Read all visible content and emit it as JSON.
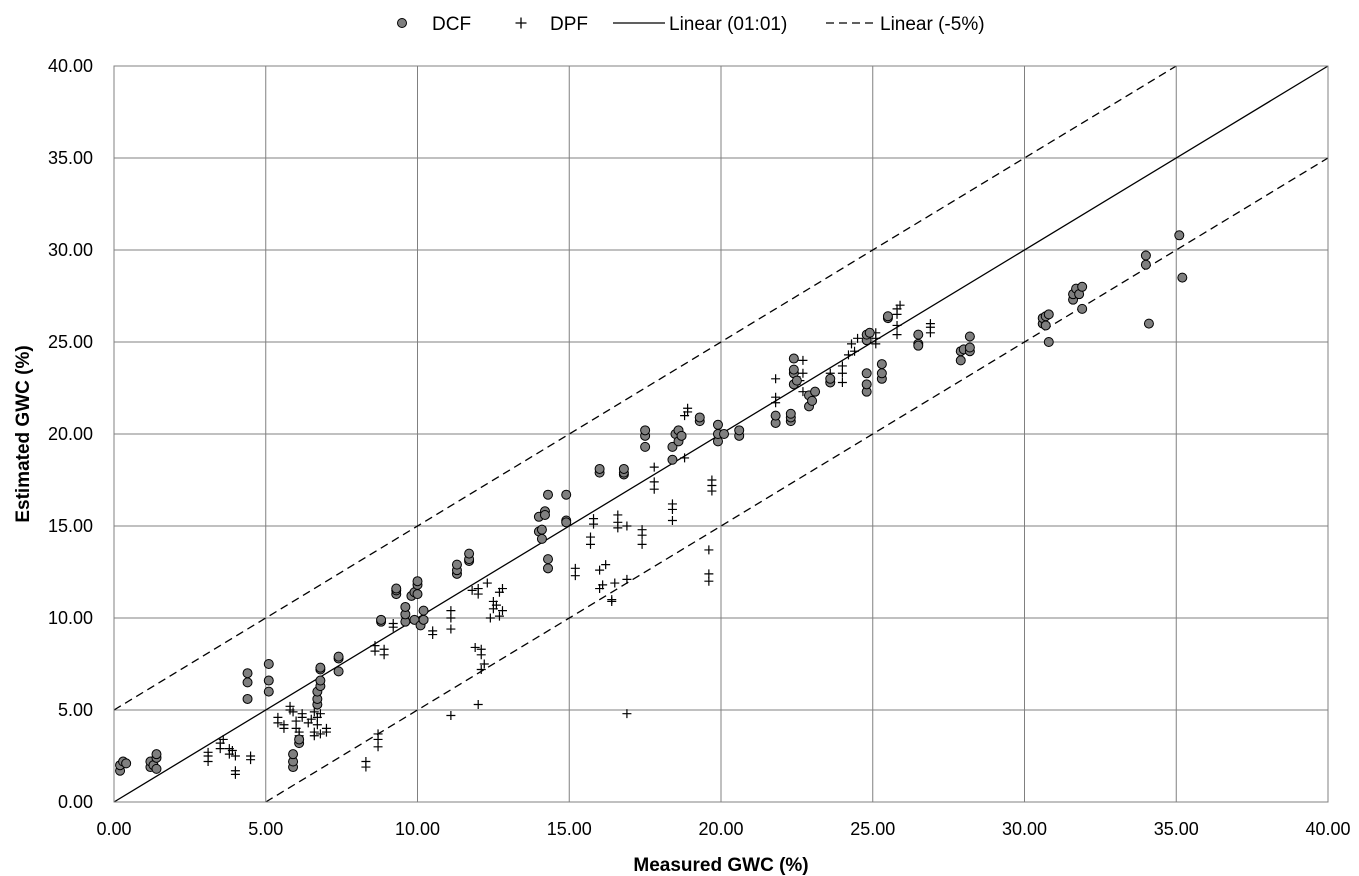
{
  "chart_data": {
    "type": "scatter",
    "xlabel": "Measured GWC (%)",
    "ylabel": "Estimated GWC (%)",
    "xlim": [
      0,
      40
    ],
    "ylim": [
      0,
      40
    ],
    "x_ticks": [
      "0.00",
      "5.00",
      "10.00",
      "15.00",
      "20.00",
      "25.00",
      "30.00",
      "35.00",
      "40.00"
    ],
    "y_ticks": [
      "0.00",
      "5.00",
      "10.00",
      "15.00",
      "20.00",
      "25.00",
      "30.00",
      "35.00",
      "40.00"
    ],
    "grid": true,
    "legend_position": "top",
    "legend": {
      "dcf": "DCF",
      "dpf": "DPF",
      "linear_1": "Linear (01:01)",
      "linear_5": "Linear (-5%)"
    },
    "series": [
      {
        "name": "DCF",
        "marker": "circle",
        "color": "#7f7f7f",
        "points": [
          [
            0.2,
            1.7
          ],
          [
            0.2,
            2.0
          ],
          [
            0.3,
            2.2
          ],
          [
            0.4,
            2.1
          ],
          [
            1.2,
            1.9
          ],
          [
            1.2,
            2.2
          ],
          [
            1.3,
            2.0
          ],
          [
            1.4,
            1.8
          ],
          [
            1.4,
            2.4
          ],
          [
            1.4,
            2.6
          ],
          [
            4.4,
            5.6
          ],
          [
            4.4,
            6.5
          ],
          [
            4.4,
            7.0
          ],
          [
            5.1,
            6.0
          ],
          [
            5.1,
            6.6
          ],
          [
            5.1,
            7.5
          ],
          [
            5.9,
            1.9
          ],
          [
            5.9,
            2.2
          ],
          [
            5.9,
            2.6
          ],
          [
            6.1,
            3.2
          ],
          [
            6.1,
            3.4
          ],
          [
            6.7,
            5.3
          ],
          [
            6.7,
            5.6
          ],
          [
            6.7,
            6.0
          ],
          [
            6.8,
            6.3
          ],
          [
            6.8,
            6.6
          ],
          [
            6.8,
            7.2
          ],
          [
            6.8,
            7.3
          ],
          [
            7.4,
            7.1
          ],
          [
            7.4,
            7.8
          ],
          [
            7.4,
            7.9
          ],
          [
            8.8,
            9.8
          ],
          [
            8.8,
            9.9
          ],
          [
            9.3,
            11.3
          ],
          [
            9.3,
            11.5
          ],
          [
            9.3,
            11.6
          ],
          [
            9.6,
            9.8
          ],
          [
            9.6,
            10.2
          ],
          [
            9.6,
            10.6
          ],
          [
            9.8,
            11.2
          ],
          [
            9.9,
            11.4
          ],
          [
            9.9,
            9.9
          ],
          [
            10.0,
            11.3
          ],
          [
            10.0,
            11.8
          ],
          [
            10.0,
            12.0
          ],
          [
            10.1,
            9.6
          ],
          [
            10.2,
            9.9
          ],
          [
            10.2,
            10.4
          ],
          [
            11.3,
            12.4
          ],
          [
            11.3,
            12.6
          ],
          [
            11.3,
            12.9
          ],
          [
            11.7,
            13.1
          ],
          [
            11.7,
            13.2
          ],
          [
            11.7,
            13.5
          ],
          [
            14.0,
            15.5
          ],
          [
            14.0,
            14.7
          ],
          [
            14.1,
            14.3
          ],
          [
            14.1,
            14.8
          ],
          [
            14.2,
            15.8
          ],
          [
            14.2,
            15.6
          ],
          [
            14.3,
            12.7
          ],
          [
            14.3,
            13.2
          ],
          [
            14.3,
            16.7
          ],
          [
            14.9,
            15.3
          ],
          [
            14.9,
            15.2
          ],
          [
            14.9,
            16.7
          ],
          [
            16.0,
            17.9
          ],
          [
            16.0,
            18.1
          ],
          [
            16.8,
            17.8
          ],
          [
            16.8,
            17.9
          ],
          [
            16.8,
            18.1
          ],
          [
            17.5,
            19.3
          ],
          [
            17.5,
            19.9
          ],
          [
            17.5,
            20.2
          ],
          [
            18.4,
            18.6
          ],
          [
            18.4,
            19.3
          ],
          [
            18.5,
            20.0
          ],
          [
            18.6,
            19.6
          ],
          [
            18.6,
            20.2
          ],
          [
            18.7,
            19.9
          ],
          [
            19.3,
            20.7
          ],
          [
            19.3,
            20.9
          ],
          [
            19.9,
            19.6
          ],
          [
            19.9,
            20.0
          ],
          [
            19.9,
            20.5
          ],
          [
            20.1,
            20.0
          ],
          [
            20.6,
            19.9
          ],
          [
            20.6,
            20.2
          ],
          [
            21.8,
            20.6
          ],
          [
            21.8,
            21.0
          ],
          [
            22.3,
            20.7
          ],
          [
            22.3,
            20.9
          ],
          [
            22.3,
            21.1
          ],
          [
            22.4,
            22.7
          ],
          [
            22.4,
            23.3
          ],
          [
            22.4,
            23.5
          ],
          [
            22.4,
            24.1
          ],
          [
            22.5,
            22.9
          ],
          [
            22.9,
            21.5
          ],
          [
            22.9,
            22.1
          ],
          [
            23.0,
            21.8
          ],
          [
            23.1,
            22.3
          ],
          [
            23.6,
            22.8
          ],
          [
            23.6,
            23.0
          ],
          [
            24.8,
            22.3
          ],
          [
            24.8,
            22.7
          ],
          [
            24.8,
            23.3
          ],
          [
            24.8,
            25.1
          ],
          [
            24.8,
            25.4
          ],
          [
            24.9,
            25.5
          ],
          [
            25.3,
            23.0
          ],
          [
            25.3,
            23.3
          ],
          [
            25.3,
            23.8
          ],
          [
            25.5,
            26.3
          ],
          [
            25.5,
            26.4
          ],
          [
            26.5,
            24.9
          ],
          [
            26.5,
            25.4
          ],
          [
            26.5,
            24.8
          ],
          [
            27.9,
            24.0
          ],
          [
            27.9,
            24.5
          ],
          [
            28.0,
            24.6
          ],
          [
            28.2,
            24.5
          ],
          [
            28.2,
            24.7
          ],
          [
            28.2,
            25.3
          ],
          [
            30.6,
            26.0
          ],
          [
            30.6,
            26.3
          ],
          [
            30.7,
            26.4
          ],
          [
            30.7,
            25.9
          ],
          [
            30.8,
            26.5
          ],
          [
            30.8,
            25.0
          ],
          [
            31.6,
            27.3
          ],
          [
            31.6,
            27.6
          ],
          [
            31.7,
            27.9
          ],
          [
            31.8,
            27.6
          ],
          [
            31.9,
            28.0
          ],
          [
            31.9,
            26.8
          ],
          [
            34.0,
            29.2
          ],
          [
            34.0,
            29.7
          ],
          [
            34.1,
            26.0
          ],
          [
            35.1,
            30.8
          ],
          [
            35.2,
            28.5
          ]
        ]
      },
      {
        "name": "DPF",
        "marker": "plus",
        "color": "#000000",
        "points": [
          [
            3.1,
            2.2
          ],
          [
            3.1,
            2.5
          ],
          [
            3.1,
            2.7
          ],
          [
            3.5,
            2.9
          ],
          [
            3.5,
            3.2
          ],
          [
            3.6,
            3.4
          ],
          [
            3.8,
            2.6
          ],
          [
            3.8,
            2.9
          ],
          [
            3.9,
            2.8
          ],
          [
            4.0,
            2.5
          ],
          [
            4.0,
            1.5
          ],
          [
            4.0,
            1.7
          ],
          [
            4.5,
            2.3
          ],
          [
            4.5,
            2.5
          ],
          [
            5.4,
            4.3
          ],
          [
            5.4,
            4.6
          ],
          [
            5.6,
            4.0
          ],
          [
            5.6,
            4.2
          ],
          [
            5.8,
            5.2
          ],
          [
            5.8,
            5.0
          ],
          [
            5.9,
            4.9
          ],
          [
            6.0,
            4.4
          ],
          [
            6.0,
            4.0
          ],
          [
            6.1,
            3.6
          ],
          [
            6.1,
            3.8
          ],
          [
            6.2,
            4.6
          ],
          [
            6.2,
            4.8
          ],
          [
            6.4,
            4.3
          ],
          [
            6.5,
            4.5
          ],
          [
            6.6,
            3.6
          ],
          [
            6.6,
            3.8
          ],
          [
            6.6,
            4.9
          ],
          [
            6.7,
            4.6
          ],
          [
            6.7,
            4.2
          ],
          [
            6.8,
            3.7
          ],
          [
            6.8,
            4.8
          ],
          [
            7.0,
            3.8
          ],
          [
            7.0,
            4.0
          ],
          [
            8.3,
            1.9
          ],
          [
            8.3,
            2.2
          ],
          [
            8.6,
            8.2
          ],
          [
            8.6,
            8.5
          ],
          [
            8.7,
            3.0
          ],
          [
            8.7,
            3.4
          ],
          [
            8.7,
            3.7
          ],
          [
            8.9,
            8.0
          ],
          [
            8.9,
            8.3
          ],
          [
            9.2,
            9.5
          ],
          [
            9.2,
            9.7
          ],
          [
            10.5,
            9.1
          ],
          [
            10.5,
            9.3
          ],
          [
            11.1,
            4.7
          ],
          [
            11.1,
            9.4
          ],
          [
            11.1,
            10.0
          ],
          [
            11.1,
            10.4
          ],
          [
            11.8,
            11.5
          ],
          [
            11.9,
            8.4
          ],
          [
            12.0,
            11.3
          ],
          [
            12.0,
            11.6
          ],
          [
            12.0,
            5.3
          ],
          [
            12.1,
            8.0
          ],
          [
            12.1,
            8.3
          ],
          [
            12.1,
            7.2
          ],
          [
            12.2,
            7.5
          ],
          [
            12.3,
            11.9
          ],
          [
            12.4,
            10.0
          ],
          [
            12.5,
            10.5
          ],
          [
            12.5,
            10.9
          ],
          [
            12.6,
            10.7
          ],
          [
            12.7,
            10.1
          ],
          [
            12.7,
            11.4
          ],
          [
            12.8,
            10.4
          ],
          [
            12.8,
            11.6
          ],
          [
            15.2,
            12.3
          ],
          [
            15.2,
            12.7
          ],
          [
            15.7,
            14.0
          ],
          [
            15.7,
            14.4
          ],
          [
            15.8,
            15.1
          ],
          [
            15.8,
            15.4
          ],
          [
            16.0,
            11.6
          ],
          [
            16.0,
            12.6
          ],
          [
            16.1,
            11.8
          ],
          [
            16.2,
            12.9
          ],
          [
            16.4,
            11.0
          ],
          [
            16.4,
            10.9
          ],
          [
            16.5,
            11.9
          ],
          [
            16.6,
            14.9
          ],
          [
            16.6,
            15.2
          ],
          [
            16.6,
            15.6
          ],
          [
            16.9,
            4.8
          ],
          [
            16.9,
            12.1
          ],
          [
            16.9,
            15.0
          ],
          [
            17.4,
            14.0
          ],
          [
            17.4,
            14.5
          ],
          [
            17.4,
            14.8
          ],
          [
            17.8,
            17.0
          ],
          [
            17.8,
            17.4
          ],
          [
            17.8,
            18.2
          ],
          [
            18.4,
            15.3
          ],
          [
            18.4,
            15.9
          ],
          [
            18.4,
            16.2
          ],
          [
            18.8,
            18.7
          ],
          [
            18.8,
            21.0
          ],
          [
            18.9,
            21.2
          ],
          [
            18.9,
            21.4
          ],
          [
            19.6,
            12.0
          ],
          [
            19.6,
            12.4
          ],
          [
            19.6,
            13.7
          ],
          [
            19.7,
            16.9
          ],
          [
            19.7,
            17.2
          ],
          [
            19.7,
            17.5
          ],
          [
            21.8,
            21.7
          ],
          [
            21.8,
            22.0
          ],
          [
            21.8,
            23.0
          ],
          [
            22.6,
            22.9
          ],
          [
            22.7,
            22.3
          ],
          [
            22.7,
            23.3
          ],
          [
            22.7,
            24.0
          ],
          [
            23.6,
            23.3
          ],
          [
            23.6,
            22.9
          ],
          [
            24.0,
            22.8
          ],
          [
            24.0,
            23.3
          ],
          [
            24.0,
            23.7
          ],
          [
            24.2,
            24.3
          ],
          [
            24.3,
            24.9
          ],
          [
            24.4,
            24.5
          ],
          [
            24.5,
            25.2
          ],
          [
            25.1,
            24.9
          ],
          [
            25.1,
            25.2
          ],
          [
            25.1,
            25.5
          ],
          [
            25.8,
            25.4
          ],
          [
            25.8,
            25.9
          ],
          [
            25.8,
            26.5
          ],
          [
            25.8,
            26.8
          ],
          [
            25.9,
            27.0
          ],
          [
            26.9,
            25.5
          ],
          [
            26.9,
            25.8
          ],
          [
            26.9,
            26.0
          ]
        ]
      }
    ],
    "lines": [
      {
        "name": "Linear (01:01)",
        "style": "solid",
        "points": [
          [
            0,
            0
          ],
          [
            40,
            40
          ]
        ]
      },
      {
        "name": "Linear (-5%)",
        "style": "dashed",
        "points": [
          [
            0,
            5
          ],
          [
            35,
            40
          ]
        ]
      },
      {
        "name": "Linear (-5%)",
        "style": "dashed",
        "points": [
          [
            5,
            0
          ],
          [
            40,
            35
          ]
        ]
      }
    ]
  }
}
